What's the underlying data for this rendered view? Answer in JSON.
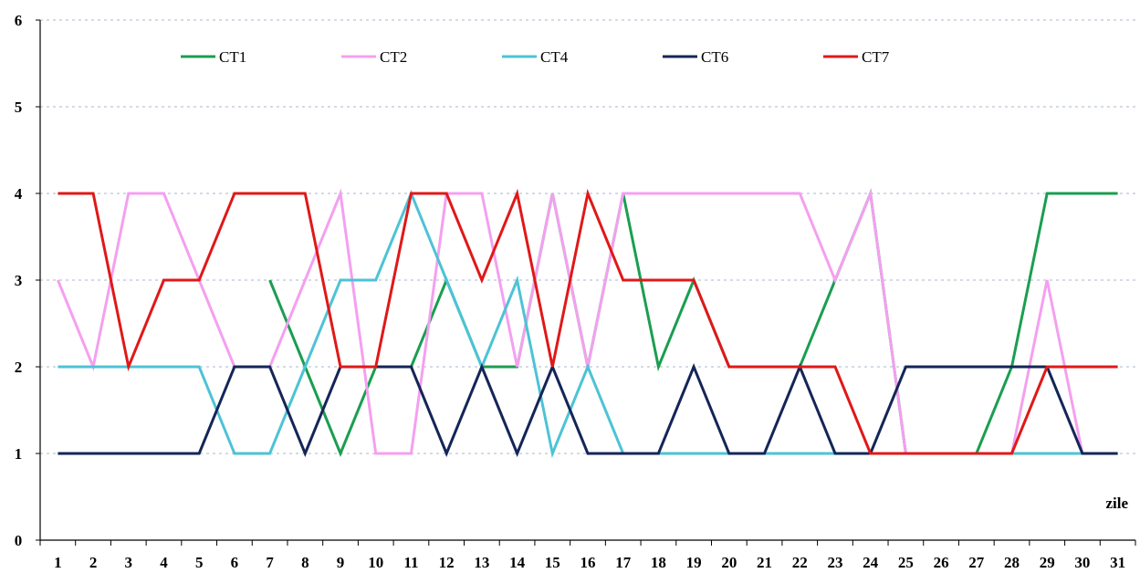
{
  "chart_data": {
    "type": "line",
    "xlabel": "zile",
    "ylabel": "",
    "ylim": [
      0,
      6
    ],
    "y_ticks": [
      0,
      1,
      2,
      3,
      4,
      5,
      6
    ],
    "x_ticks": [
      "1",
      "2",
      "3",
      "4",
      "5",
      "6",
      "7",
      "8",
      "9",
      "10",
      "11",
      "12",
      "13",
      "14",
      "15",
      "16",
      "17",
      "18",
      "19",
      "20",
      "21",
      "22",
      "23",
      "24",
      "25",
      "26",
      "27",
      "28",
      "29",
      "30",
      "31"
    ],
    "grid": "horizontal dotted",
    "legend_position": "top",
    "series": [
      {
        "name": "CT1",
        "color": "#1a9e50",
        "x": [
          7,
          8,
          9,
          10,
          11,
          12,
          13,
          14,
          15,
          16,
          17,
          18,
          19,
          20,
          21,
          22,
          23,
          24,
          25,
          26,
          27,
          28,
          29,
          30,
          31
        ],
        "values": [
          3,
          2,
          1,
          2,
          2,
          3,
          2,
          2,
          4,
          2,
          4,
          2,
          3,
          2,
          2,
          2,
          3,
          4,
          1,
          1,
          1,
          2,
          4,
          4,
          4
        ]
      },
      {
        "name": "CT2",
        "color": "#f4a0f0",
        "x": [
          1,
          2,
          3,
          4,
          5,
          6,
          7,
          8,
          9,
          10,
          11,
          12,
          13,
          14,
          15,
          16,
          17,
          18,
          19,
          20,
          21,
          22,
          23,
          24,
          25,
          26,
          27,
          28,
          29,
          30,
          31
        ],
        "values": [
          3,
          2,
          4,
          4,
          3,
          2,
          2,
          3,
          4,
          1,
          1,
          4,
          4,
          2,
          4,
          2,
          4,
          4,
          4,
          4,
          4,
          4,
          3,
          4,
          1,
          1,
          1,
          1,
          3,
          1,
          1
        ]
      },
      {
        "name": "CT4",
        "color": "#4dc3d6",
        "x": [
          1,
          2,
          3,
          4,
          5,
          6,
          7,
          8,
          9,
          10,
          11,
          12,
          13,
          14,
          15,
          16,
          17,
          18,
          19,
          20,
          21,
          22,
          23,
          24,
          25,
          26,
          27,
          28,
          29,
          30,
          31
        ],
        "values": [
          2,
          2,
          2,
          2,
          2,
          1,
          1,
          2,
          3,
          3,
          4,
          3,
          2,
          3,
          1,
          2,
          1,
          1,
          1,
          1,
          1,
          1,
          1,
          1,
          1,
          1,
          1,
          1,
          1,
          1,
          1
        ]
      },
      {
        "name": "CT6",
        "color": "#142657",
        "x": [
          1,
          2,
          3,
          4,
          5,
          6,
          7,
          8,
          9,
          10,
          11,
          12,
          13,
          14,
          15,
          16,
          17,
          18,
          19,
          20,
          21,
          22,
          23,
          24,
          25,
          26,
          27,
          28,
          29,
          30,
          31
        ],
        "values": [
          1,
          1,
          1,
          1,
          1,
          2,
          2,
          1,
          2,
          2,
          2,
          1,
          2,
          1,
          2,
          1,
          1,
          1,
          2,
          1,
          1,
          2,
          1,
          1,
          2,
          2,
          2,
          2,
          2,
          1,
          1
        ]
      },
      {
        "name": "CT7",
        "color": "#e01818",
        "x": [
          1,
          2,
          3,
          4,
          5,
          6,
          7,
          8,
          9,
          10,
          11,
          12,
          13,
          14,
          15,
          16,
          17,
          18,
          19,
          20,
          21,
          22,
          23,
          24,
          25,
          26,
          27,
          28,
          29,
          30,
          31
        ],
        "values": [
          4,
          4,
          2,
          3,
          3,
          4,
          4,
          4,
          2,
          2,
          4,
          4,
          3,
          4,
          2,
          4,
          3,
          3,
          3,
          2,
          2,
          2,
          2,
          1,
          1,
          1,
          1,
          1,
          2,
          2,
          2
        ]
      }
    ]
  }
}
